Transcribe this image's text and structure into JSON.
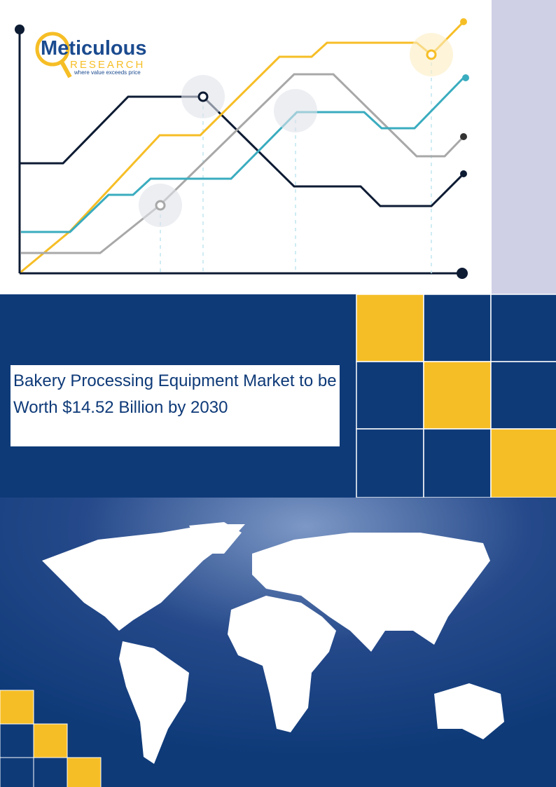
{
  "logo": {
    "name": "Meticulous",
    "sub": "RESEARCH",
    "tagline": "where value exceeds price"
  },
  "title": "Bakery Processing Equipment Market to be Worth $14.52 Billion by 2030"
}
